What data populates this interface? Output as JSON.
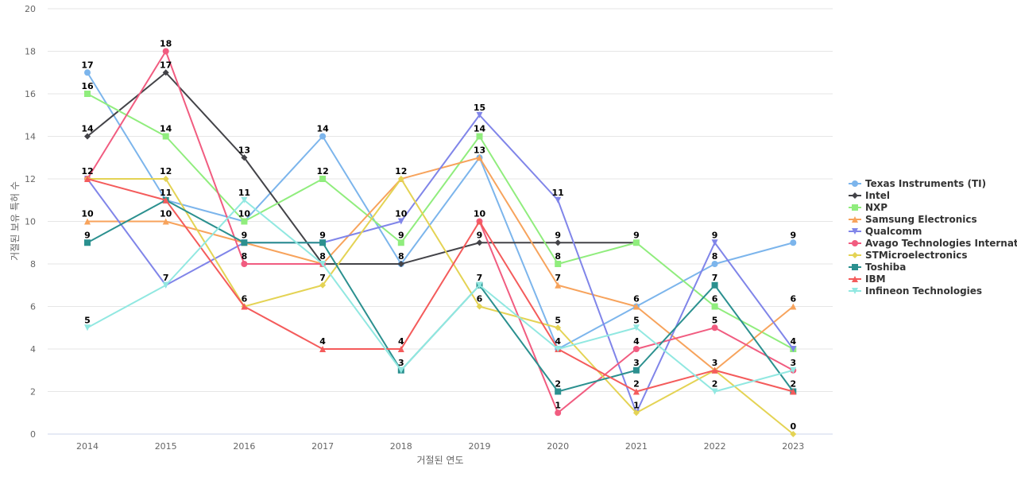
{
  "chart_data": {
    "type": "line",
    "xlabel": "거절된 연도",
    "ylabel": "거절된 보유 특허 수",
    "x": [
      2014,
      2015,
      2016,
      2017,
      2018,
      2019,
      2020,
      2021,
      2022,
      2023
    ],
    "ylim": [
      0,
      20
    ],
    "yticks": [
      0,
      2,
      4,
      6,
      8,
      10,
      12,
      14,
      16,
      18,
      20
    ],
    "grid": true,
    "legend_position": "right",
    "series": [
      {
        "name": "Texas Instruments (TI)",
        "color": "#7cb5ec",
        "marker": "circle",
        "values": [
          17,
          11,
          10,
          14,
          8,
          13,
          4,
          6,
          8,
          9
        ]
      },
      {
        "name": "Intel",
        "color": "#434348",
        "marker": "diamond",
        "values": [
          14,
          17,
          13,
          8,
          8,
          9,
          9,
          9,
          null,
          null
        ]
      },
      {
        "name": "NXP",
        "color": "#90ed7d",
        "marker": "square",
        "values": [
          16,
          14,
          10,
          12,
          9,
          14,
          8,
          9,
          6,
          4
        ]
      },
      {
        "name": "Samsung Electronics",
        "color": "#f7a35c",
        "marker": "triangle",
        "values": [
          10,
          10,
          9,
          8,
          12,
          13,
          7,
          6,
          3,
          6
        ]
      },
      {
        "name": "Qualcomm",
        "color": "#8085e9",
        "marker": "triangle-down",
        "values": [
          12,
          7,
          9,
          9,
          10,
          15,
          11,
          1,
          9,
          4
        ]
      },
      {
        "name": "Avago Technologies Internat...",
        "color": "#f15c80",
        "marker": "circle",
        "values": [
          12,
          18,
          8,
          8,
          null,
          10,
          1,
          4,
          5,
          3
        ]
      },
      {
        "name": "STMicroelectronics",
        "color": "#e4d354",
        "marker": "diamond",
        "values": [
          12,
          12,
          6,
          7,
          12,
          6,
          5,
          1,
          3,
          0
        ]
      },
      {
        "name": "Toshiba",
        "color": "#2b908f",
        "marker": "square",
        "values": [
          9,
          11,
          9,
          9,
          3,
          7,
          2,
          3,
          7,
          2
        ]
      },
      {
        "name": "IBM",
        "color": "#f45b5b",
        "marker": "triangle",
        "values": [
          12,
          11,
          6,
          4,
          4,
          10,
          4,
          2,
          3,
          2
        ]
      },
      {
        "name": "Infineon Technologies",
        "color": "#91e8e1",
        "marker": "triangle-down",
        "values": [
          5,
          7,
          11,
          8,
          3,
          7,
          4,
          5,
          2,
          3
        ]
      }
    ],
    "data_labels": [
      {
        "x": 2014,
        "y": 17,
        "text": "17"
      },
      {
        "x": 2014,
        "y": 16,
        "text": "16"
      },
      {
        "x": 2014,
        "y": 14,
        "text": "14"
      },
      {
        "x": 2014,
        "y": 12,
        "text": "12"
      },
      {
        "x": 2014,
        "y": 10,
        "text": "10"
      },
      {
        "x": 2014,
        "y": 9,
        "text": "9"
      },
      {
        "x": 2014,
        "y": 5,
        "text": "5"
      },
      {
        "x": 2015,
        "y": 18,
        "text": "18"
      },
      {
        "x": 2015,
        "y": 17,
        "text": "17"
      },
      {
        "x": 2015,
        "y": 14,
        "text": "14"
      },
      {
        "x": 2015,
        "y": 12,
        "text": "12"
      },
      {
        "x": 2015,
        "y": 11,
        "text": "11"
      },
      {
        "x": 2015,
        "y": 10,
        "text": "10"
      },
      {
        "x": 2015,
        "y": 7,
        "text": "7"
      },
      {
        "x": 2016,
        "y": 13,
        "text": "13"
      },
      {
        "x": 2016,
        "y": 11,
        "text": "11"
      },
      {
        "x": 2016,
        "y": 10,
        "text": "10"
      },
      {
        "x": 2016,
        "y": 9,
        "text": "9"
      },
      {
        "x": 2016,
        "y": 8,
        "text": "8"
      },
      {
        "x": 2016,
        "y": 6,
        "text": "6"
      },
      {
        "x": 2017,
        "y": 14,
        "text": "14"
      },
      {
        "x": 2017,
        "y": 12,
        "text": "12"
      },
      {
        "x": 2017,
        "y": 9,
        "text": "9"
      },
      {
        "x": 2017,
        "y": 8,
        "text": "8"
      },
      {
        "x": 2017,
        "y": 7,
        "text": "7"
      },
      {
        "x": 2017,
        "y": 4,
        "text": "4"
      },
      {
        "x": 2018,
        "y": 12,
        "text": "12"
      },
      {
        "x": 2018,
        "y": 10,
        "text": "10"
      },
      {
        "x": 2018,
        "y": 9,
        "text": "9"
      },
      {
        "x": 2018,
        "y": 8,
        "text": "8"
      },
      {
        "x": 2018,
        "y": 4,
        "text": "4"
      },
      {
        "x": 2018,
        "y": 3,
        "text": "3"
      },
      {
        "x": 2019,
        "y": 15,
        "text": "15"
      },
      {
        "x": 2019,
        "y": 14,
        "text": "14"
      },
      {
        "x": 2019,
        "y": 13,
        "text": "13"
      },
      {
        "x": 2019,
        "y": 10,
        "text": "10"
      },
      {
        "x": 2019,
        "y": 9,
        "text": "9"
      },
      {
        "x": 2019,
        "y": 7,
        "text": "7"
      },
      {
        "x": 2019,
        "y": 6,
        "text": "6"
      },
      {
        "x": 2020,
        "y": 11,
        "text": "11"
      },
      {
        "x": 2020,
        "y": 9,
        "text": "9"
      },
      {
        "x": 2020,
        "y": 8,
        "text": "8"
      },
      {
        "x": 2020,
        "y": 7,
        "text": "7"
      },
      {
        "x": 2020,
        "y": 5,
        "text": "5"
      },
      {
        "x": 2020,
        "y": 4,
        "text": "4"
      },
      {
        "x": 2020,
        "y": 2,
        "text": "2"
      },
      {
        "x": 2020,
        "y": 1,
        "text": "1"
      },
      {
        "x": 2021,
        "y": 9,
        "text": "9"
      },
      {
        "x": 2021,
        "y": 6,
        "text": "6"
      },
      {
        "x": 2021,
        "y": 5,
        "text": "5"
      },
      {
        "x": 2021,
        "y": 4,
        "text": "4"
      },
      {
        "x": 2021,
        "y": 3,
        "text": "3"
      },
      {
        "x": 2021,
        "y": 2,
        "text": "2"
      },
      {
        "x": 2021,
        "y": 1,
        "text": "1"
      },
      {
        "x": 2022,
        "y": 9,
        "text": "9"
      },
      {
        "x": 2022,
        "y": 8,
        "text": "8"
      },
      {
        "x": 2022,
        "y": 7,
        "text": "7"
      },
      {
        "x": 2022,
        "y": 6,
        "text": "6"
      },
      {
        "x": 2022,
        "y": 5,
        "text": "5"
      },
      {
        "x": 2022,
        "y": 3,
        "text": "3"
      },
      {
        "x": 2022,
        "y": 2,
        "text": "2"
      },
      {
        "x": 2023,
        "y": 9,
        "text": "9"
      },
      {
        "x": 2023,
        "y": 6,
        "text": "6"
      },
      {
        "x": 2023,
        "y": 4,
        "text": "4"
      },
      {
        "x": 2023,
        "y": 3,
        "text": "3"
      },
      {
        "x": 2023,
        "y": 2,
        "text": "2"
      },
      {
        "x": 2023,
        "y": 0,
        "text": "0"
      }
    ]
  }
}
